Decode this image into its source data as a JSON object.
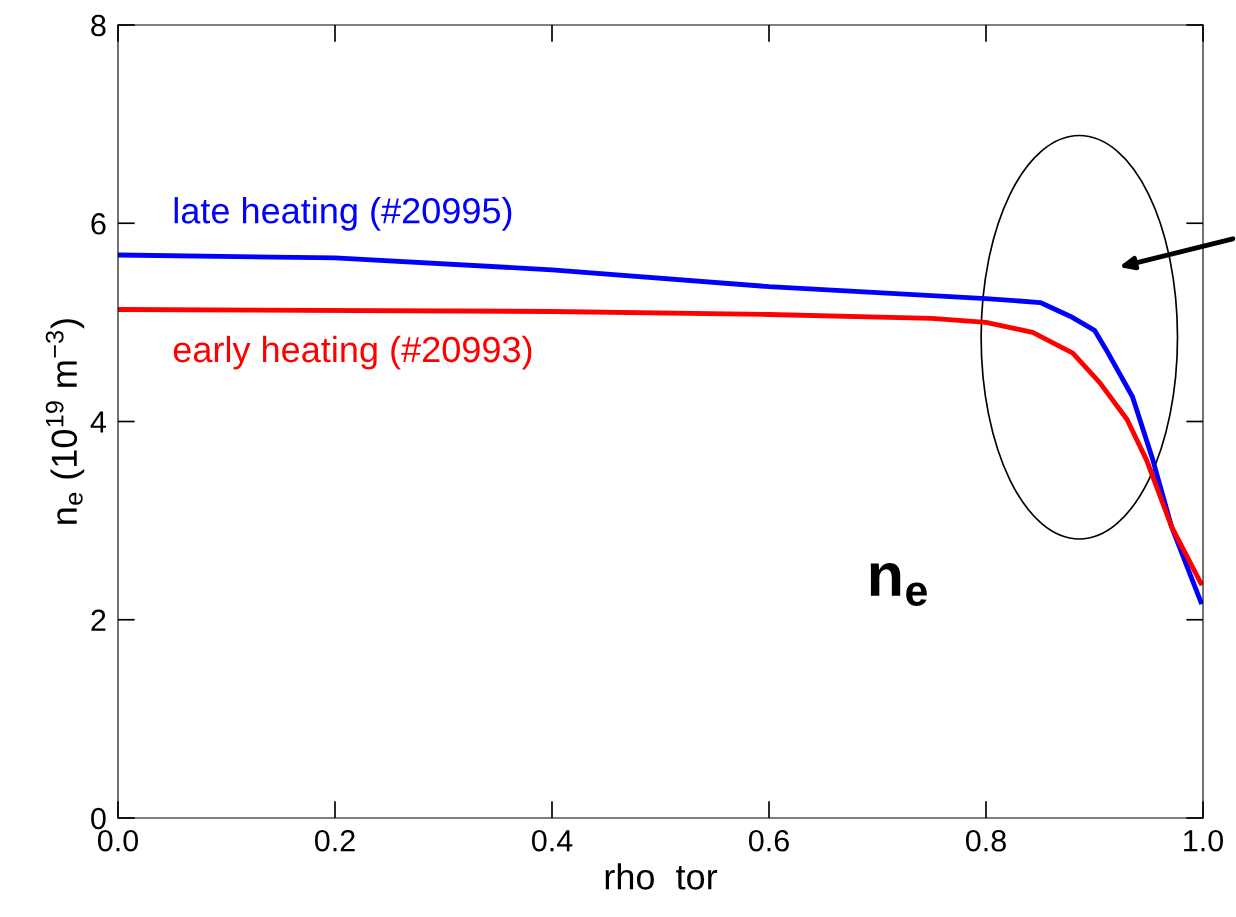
{
  "chart_data": {
    "type": "line",
    "xlabel": "rho  tor",
    "ylabel": "n$_{e}$ (10$^{19}$ m$^{−3}$)",
    "xlim": [
      0,
      1
    ],
    "ylim": [
      0,
      8
    ],
    "xticks": [
      "0.0",
      0.2,
      0.4,
      0.6,
      0.8,
      "1.0"
    ],
    "yticks": [
      0,
      2,
      4,
      6,
      8
    ],
    "grid": false,
    "legend": false,
    "marker": "none",
    "line_style": "solid",
    "annotations": [
      "n$_{e}$"
    ],
    "series": [
      {
        "name": "late heating (#20995)",
        "color": "#0000ff",
        "x": [
          0,
          0.2,
          0.4,
          0.6,
          0.8,
          0.85,
          0.878,
          0.9,
          0.911,
          0.935,
          0.953,
          0.971,
          0.998
        ],
        "values": [
          5.68,
          5.65,
          5.53,
          5.36,
          5.24,
          5.2,
          5.06,
          4.92,
          4.72,
          4.25,
          3.64,
          2.94,
          2.18
        ]
      },
      {
        "name": "early heating (#20993)",
        "color": "#ff0000",
        "x": [
          0,
          0.4,
          0.6,
          0.75,
          0.8,
          0.843,
          0.88,
          0.905,
          0.93,
          0.948,
          0.971,
          0.998
        ],
        "values": [
          5.13,
          5.11,
          5.08,
          5.04,
          5.0,
          4.9,
          4.69,
          4.39,
          4.02,
          3.61,
          2.94,
          2.37
        ]
      }
    ]
  }
}
